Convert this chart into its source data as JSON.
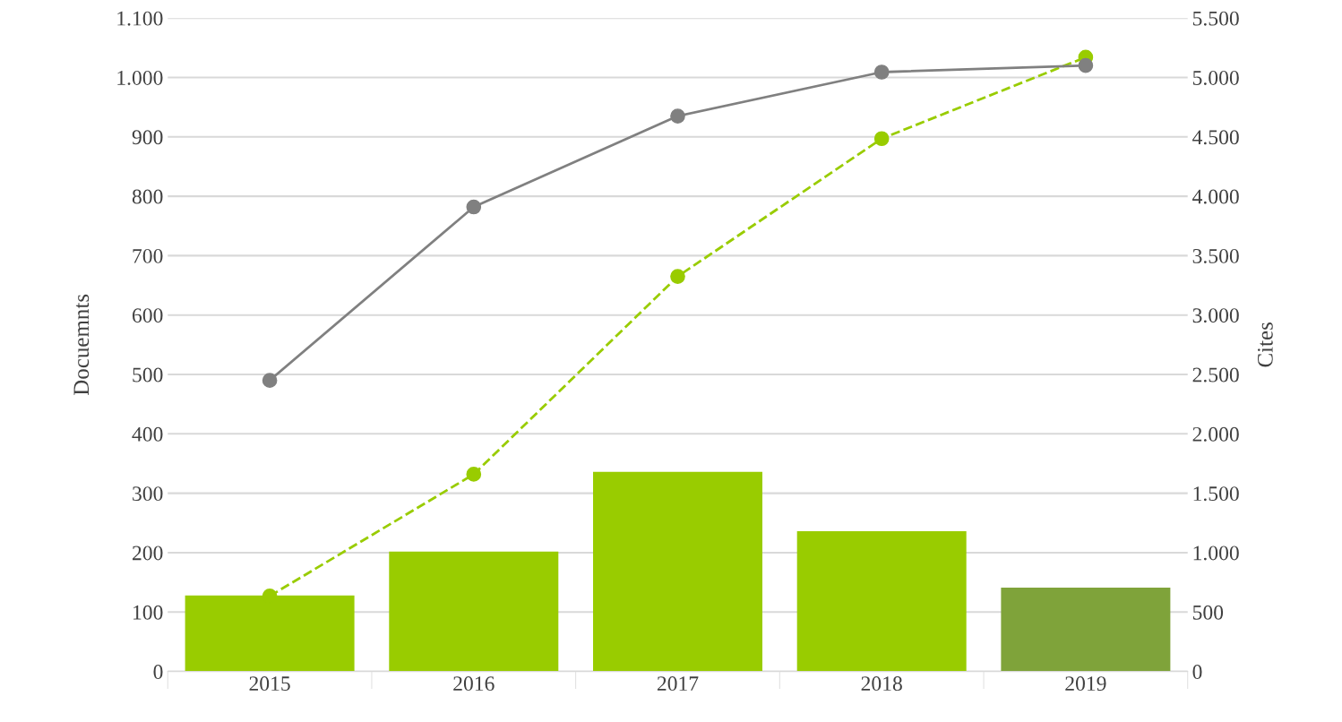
{
  "chart_data": {
    "type": "bar",
    "categories": [
      "2015",
      "2016",
      "2017",
      "2018",
      "2019"
    ],
    "ylabel": "Docuemnts",
    "y2label": "Cites",
    "series": [
      {
        "colors": [
          "#99cc00",
          "#99cc00",
          "#99cc00",
          "#99cc00",
          "#7fa33a"
        ],
        "values": [
          128,
          202,
          336,
          236,
          141
        ]
      },
      {
        "type": "line",
        "color": "#99cc00",
        "line_style": "dashed",
        "marker": "circle",
        "values": [
          127,
          332,
          665,
          897,
          1034
        ]
      },
      {
        "type": "line",
        "color": "#808080",
        "line_style": "solid",
        "marker": "circle",
        "axis": "y2",
        "values": [
          2450,
          3910,
          4675,
          5045,
          5100
        ]
      }
    ],
    "ylim": [
      0,
      1100
    ],
    "yticks": [
      0,
      100,
      200,
      300,
      400,
      500,
      600,
      700,
      800,
      900,
      {
        "value": 1000,
        "label": "1.000"
      },
      {
        "value": 1100,
        "label": "1.100"
      }
    ],
    "y2lim": [
      0,
      5500
    ],
    "y2ticks": [
      0,
      500,
      {
        "value": 1000,
        "label": "1.000"
      },
      {
        "value": 1500,
        "label": "1.500"
      },
      {
        "value": 2000,
        "label": "2.000"
      },
      {
        "value": 2500,
        "label": "2.500"
      },
      {
        "value": 3000,
        "label": "3.000"
      },
      {
        "value": 3500,
        "label": "3.500"
      },
      {
        "value": 4000,
        "label": "4.000"
      },
      {
        "value": 4500,
        "label": "4.500"
      },
      {
        "value": 5000,
        "label": "5.000"
      },
      {
        "value": 5500,
        "label": "5.500"
      }
    ],
    "grid": "y",
    "legend": false
  }
}
